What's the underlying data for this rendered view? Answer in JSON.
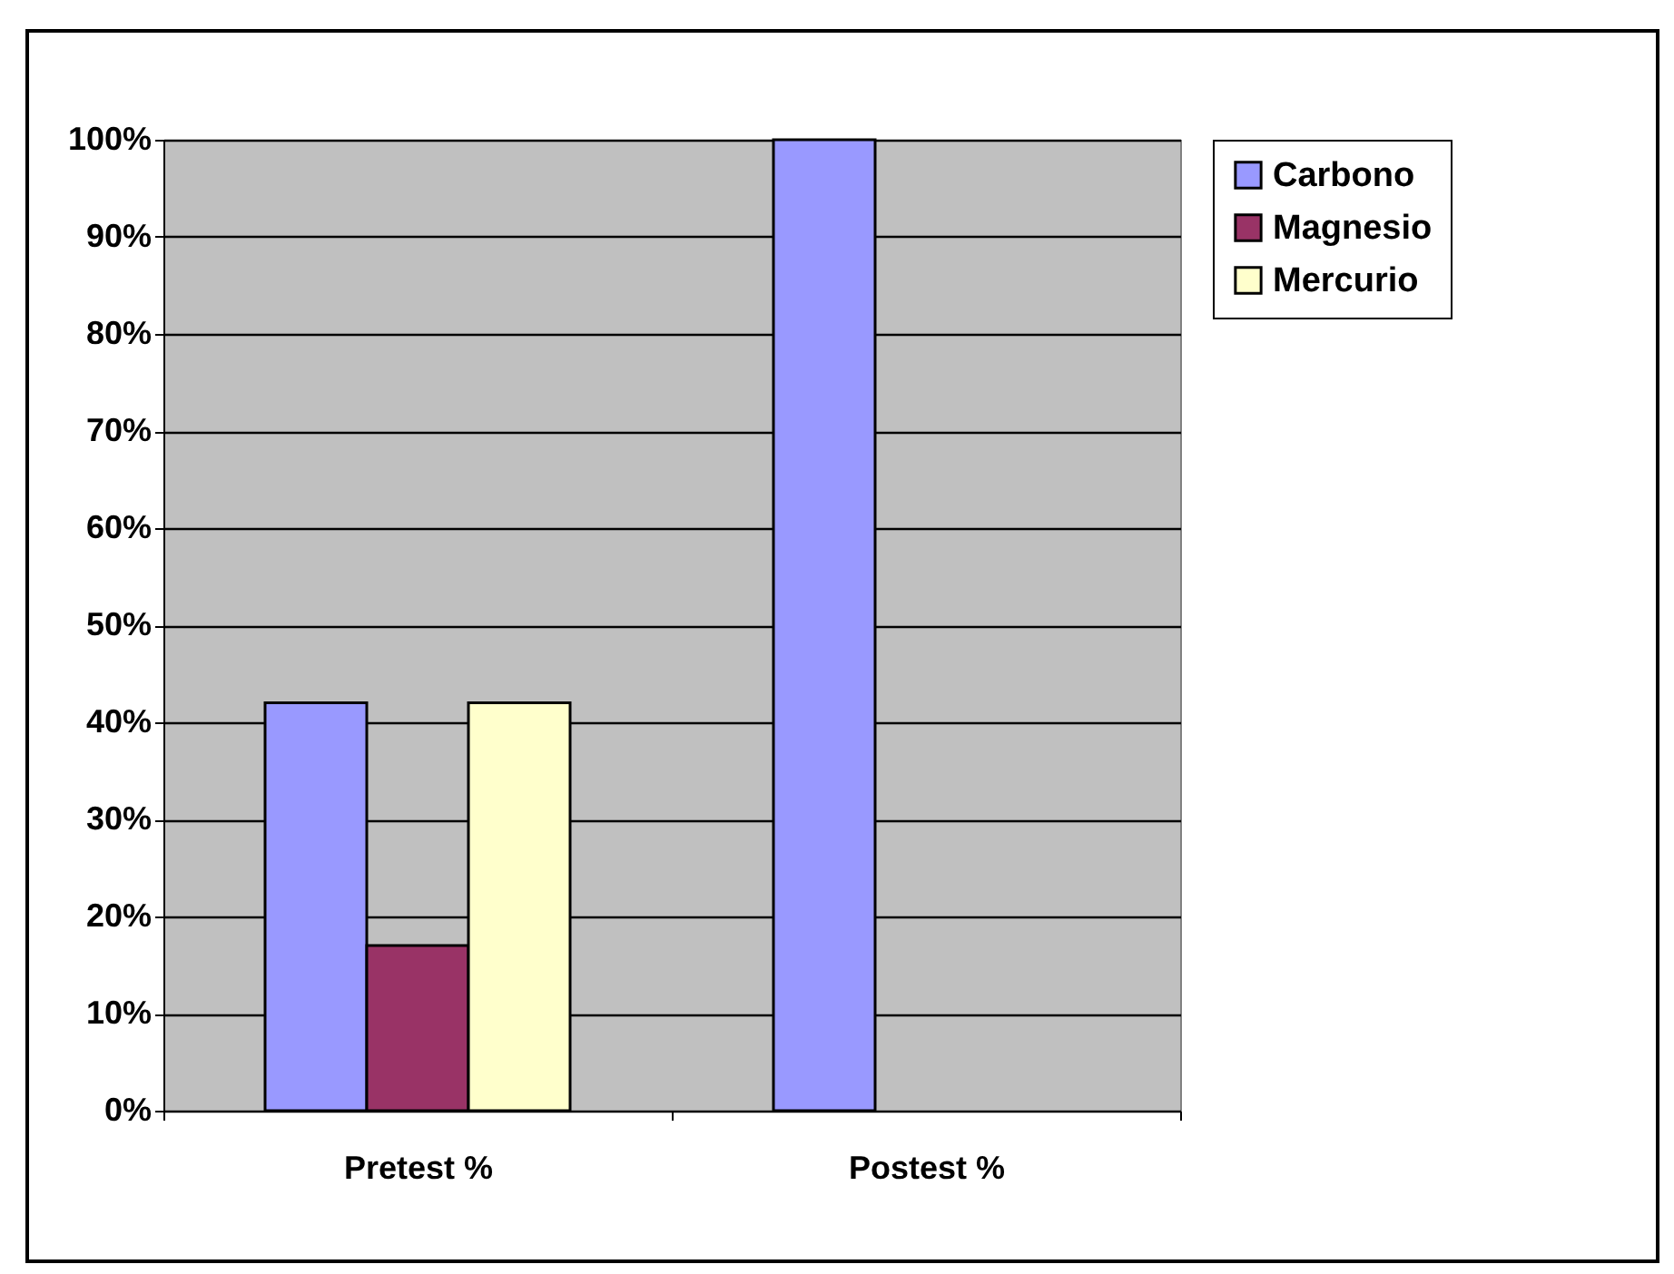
{
  "chart_data": {
    "type": "bar",
    "categories": [
      "Pretest %",
      "Postest %"
    ],
    "series": [
      {
        "name": "Carbono",
        "color": "#9999ff",
        "values": [
          42,
          100
        ]
      },
      {
        "name": "Magnesio",
        "color": "#993366",
        "values": [
          17,
          null
        ]
      },
      {
        "name": "Mercurio",
        "color": "#ffffcc",
        "values": [
          42,
          null
        ]
      }
    ],
    "ylim": [
      0,
      100
    ],
    "yticks": [
      {
        "value": 0,
        "label": "0%"
      },
      {
        "value": 10,
        "label": "10%"
      },
      {
        "value": 20,
        "label": "20%"
      },
      {
        "value": 30,
        "label": "30%"
      },
      {
        "value": 40,
        "label": "40%"
      },
      {
        "value": 50,
        "label": "50%"
      },
      {
        "value": 60,
        "label": "60%"
      },
      {
        "value": 70,
        "label": "70%"
      },
      {
        "value": 80,
        "label": "80%"
      },
      {
        "value": 90,
        "label": "90%"
      },
      {
        "value": 100,
        "label": "100%"
      }
    ],
    "grid": "y",
    "legend": "right"
  }
}
